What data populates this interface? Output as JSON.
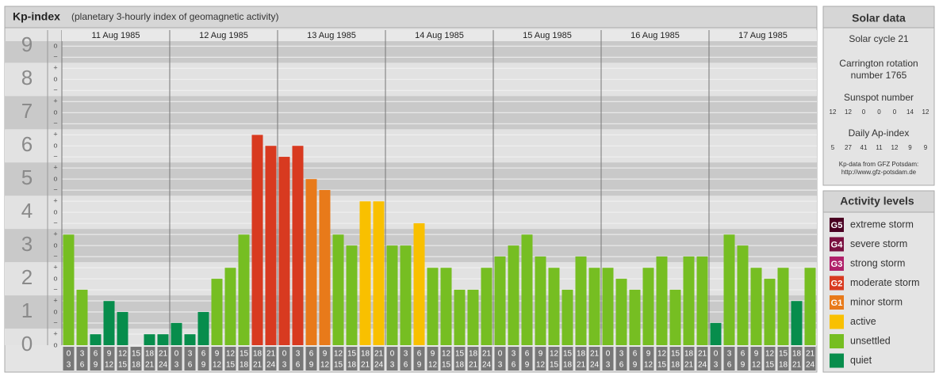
{
  "chart_data": {
    "type": "bar",
    "title": "Kp-index",
    "subtitle": "(planetary 3-hourly index of geomagnetic activity)",
    "days": [
      "11 Aug 1985",
      "12 Aug 1985",
      "13 Aug 1985",
      "14 Aug 1985",
      "15 Aug 1985",
      "16 Aug 1985",
      "17 Aug 1985"
    ],
    "hour_labels": [
      [
        "0",
        "3"
      ],
      [
        "3",
        "6"
      ],
      [
        "6",
        "9"
      ],
      [
        "9",
        "12"
      ],
      [
        "12",
        "15"
      ],
      [
        "15",
        "18"
      ],
      [
        "18",
        "21"
      ],
      [
        "21",
        "24"
      ]
    ],
    "values": [
      3.33,
      1.67,
      0.33,
      1.33,
      1.0,
      0,
      0.33,
      0.33,
      0.67,
      0.33,
      1.0,
      2.0,
      2.33,
      3.33,
      6.33,
      6.0,
      5.67,
      6.0,
      5.0,
      4.67,
      3.33,
      3.0,
      4.33,
      4.33,
      3.0,
      3.0,
      3.67,
      2.33,
      2.33,
      1.67,
      1.67,
      2.33,
      2.67,
      3.0,
      3.33,
      2.67,
      2.33,
      1.67,
      2.67,
      2.33,
      2.33,
      2.0,
      1.67,
      2.33,
      2.67,
      1.67,
      2.67,
      2.67,
      0.67,
      3.33,
      3.0,
      2.33,
      2.0,
      2.33,
      1.33,
      2.33
    ],
    "colors": [
      "#76be22",
      "#76be22",
      "#078d4c",
      "#078d4c",
      "#078d4c",
      "#078d4c",
      "#078d4c",
      "#078d4c",
      "#078d4c",
      "#078d4c",
      "#078d4c",
      "#76be22",
      "#76be22",
      "#76be22",
      "#d83a20",
      "#d83a20",
      "#d83a20",
      "#d83a20",
      "#e87a1a",
      "#e87a1a",
      "#76be22",
      "#76be22",
      "#f9c000",
      "#f9c000",
      "#76be22",
      "#76be22",
      "#f9c000",
      "#76be22",
      "#76be22",
      "#76be22",
      "#76be22",
      "#76be22",
      "#76be22",
      "#76be22",
      "#76be22",
      "#76be22",
      "#76be22",
      "#76be22",
      "#76be22",
      "#76be22",
      "#76be22",
      "#76be22",
      "#76be22",
      "#76be22",
      "#76be22",
      "#76be22",
      "#76be22",
      "#76be22",
      "#078d4c",
      "#76be22",
      "#76be22",
      "#76be22",
      "#76be22",
      "#76be22",
      "#078d4c",
      "#76be22"
    ],
    "ylim": [
      0,
      9.15
    ],
    "yticks": [
      0,
      1,
      2,
      3,
      4,
      5,
      6,
      7,
      8,
      9
    ],
    "minor_tick_labels": [
      "−",
      "o",
      "+"
    ]
  },
  "solar_data": {
    "title": "Solar data",
    "cycle": "Solar cycle 21",
    "carrington": [
      "Carrington rotation",
      "number 1765"
    ],
    "sunspot_title": "Sunspot number",
    "sunspot": [
      "12",
      "12",
      "0",
      "0",
      "0",
      "14",
      "12"
    ],
    "ap_title": "Daily Ap-index",
    "ap": [
      "5",
      "27",
      "41",
      "11",
      "12",
      "9",
      "9"
    ],
    "source": [
      "Kp-data from GFZ Potsdam:",
      "http://www.gfz-potsdam.de"
    ]
  },
  "activity_levels": {
    "title": "Activity levels",
    "items": [
      {
        "code": "G5",
        "label": "extreme storm",
        "color": "#4a0022"
      },
      {
        "code": "G4",
        "label": "severe storm",
        "color": "#7a1040"
      },
      {
        "code": "G3",
        "label": "strong storm",
        "color": "#b0206a"
      },
      {
        "code": "G2",
        "label": "moderate storm",
        "color": "#d83a20"
      },
      {
        "code": "G1",
        "label": "minor storm",
        "color": "#e87a1a"
      },
      {
        "code": null,
        "label": "active",
        "color": "#f9c000"
      },
      {
        "code": null,
        "label": "unsettled",
        "color": "#76be22"
      },
      {
        "code": null,
        "label": "quiet",
        "color": "#078d4c"
      }
    ]
  }
}
